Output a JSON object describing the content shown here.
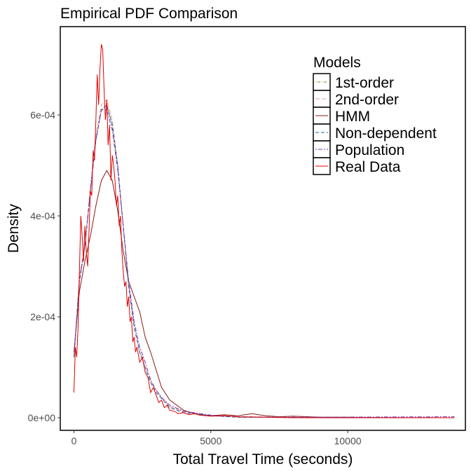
{
  "chart_data": {
    "type": "line",
    "title": "Empirical PDF Comparison",
    "xlabel": "Total Travel Time (seconds)",
    "ylabel": "Density",
    "xlim": [
      -500,
      14300
    ],
    "ylim": [
      -2.5e-05,
      0.000775
    ],
    "x_ticks": [
      0,
      5000,
      10000
    ],
    "x_tick_labels": [
      "0",
      "5000",
      "10000"
    ],
    "y_ticks": [
      0,
      0.0002,
      0.0004,
      0.0006
    ],
    "y_tick_labels": [
      "0e+00",
      "2e-04",
      "4e-04",
      "6e-04"
    ],
    "grid": false,
    "legend": {
      "title": "Models",
      "position": "top-right"
    },
    "series": [
      {
        "name": "1st-order",
        "color": "#6a8f2e",
        "dash": "1 2 4 2",
        "points": [
          [
            0,
            0.00012
          ],
          [
            200,
            0.00028
          ],
          [
            400,
            0.00034
          ],
          [
            600,
            0.00045
          ],
          [
            800,
            0.00055
          ],
          [
            1000,
            0.00061
          ],
          [
            1200,
            0.00062
          ],
          [
            1400,
            0.00058
          ],
          [
            1600,
            0.0005
          ],
          [
            1800,
            0.00038
          ],
          [
            2000,
            0.00026
          ],
          [
            2200,
            0.00018
          ],
          [
            2400,
            0.00013
          ],
          [
            2600,
            0.0001
          ],
          [
            2800,
            7e-05
          ],
          [
            3000,
            5.5e-05
          ],
          [
            3200,
            4e-05
          ],
          [
            3500,
            2.2e-05
          ],
          [
            4000,
            1.2e-05
          ],
          [
            5000,
            4e-06
          ],
          [
            6000,
            1e-06
          ],
          [
            13900,
            0
          ]
        ]
      },
      {
        "name": "2nd-order",
        "color": "#e8a0a0",
        "dash": "6 3",
        "points": [
          [
            0,
            0.00012
          ],
          [
            200,
            0.00028
          ],
          [
            400,
            0.00034
          ],
          [
            600,
            0.00046
          ],
          [
            800,
            0.00056
          ],
          [
            1000,
            0.00062
          ],
          [
            1200,
            0.00063
          ],
          [
            1400,
            0.00059
          ],
          [
            1600,
            0.0005
          ],
          [
            1800,
            0.00038
          ],
          [
            2000,
            0.00026
          ],
          [
            2200,
            0.00018
          ],
          [
            2400,
            0.00013
          ],
          [
            2600,
            0.0001
          ],
          [
            2800,
            7e-05
          ],
          [
            3000,
            5.5e-05
          ],
          [
            3200,
            4e-05
          ],
          [
            3500,
            2.2e-05
          ],
          [
            4000,
            1.2e-05
          ],
          [
            5000,
            4e-06
          ],
          [
            6000,
            1e-06
          ],
          [
            13900,
            0
          ]
        ]
      },
      {
        "name": "HMM",
        "color": "#8b1a1a",
        "dash": "",
        "points": [
          [
            0,
            0.00013
          ],
          [
            200,
            0.00025
          ],
          [
            400,
            0.00031
          ],
          [
            600,
            0.00036
          ],
          [
            800,
            0.00042
          ],
          [
            1000,
            0.00047
          ],
          [
            1200,
            0.00049
          ],
          [
            1400,
            0.00047
          ],
          [
            1600,
            0.00041
          ],
          [
            1800,
            0.00033
          ],
          [
            2000,
            0.00027
          ],
          [
            2200,
            0.00024
          ],
          [
            2400,
            0.00021
          ],
          [
            2600,
            0.00016
          ],
          [
            2800,
            0.00013
          ],
          [
            3000,
            9.5e-05
          ],
          [
            3200,
            6e-05
          ],
          [
            3500,
            3.5e-05
          ],
          [
            4000,
            1.5e-05
          ],
          [
            4500,
            7e-06
          ],
          [
            5000,
            4e-06
          ],
          [
            5500,
            6e-06
          ],
          [
            6000,
            4e-06
          ],
          [
            6500,
            8e-06
          ],
          [
            7000,
            4e-06
          ],
          [
            7500,
            2e-06
          ],
          [
            8000,
            3e-06
          ],
          [
            9000,
            1e-06
          ],
          [
            10000,
            1e-06
          ],
          [
            11000,
            0
          ],
          [
            12000,
            0
          ],
          [
            13900,
            0
          ]
        ]
      },
      {
        "name": "Non-dependent",
        "color": "#1f5fa8",
        "dash": "5 3",
        "points": [
          [
            0,
            0.00012
          ],
          [
            200,
            0.00027
          ],
          [
            400,
            0.00034
          ],
          [
            600,
            0.00045
          ],
          [
            800,
            0.00055
          ],
          [
            1000,
            0.00061
          ],
          [
            1200,
            0.00062
          ],
          [
            1400,
            0.00058
          ],
          [
            1600,
            0.0005
          ],
          [
            1800,
            0.00038
          ],
          [
            2000,
            0.00026
          ],
          [
            2200,
            0.00018
          ],
          [
            2400,
            0.00013
          ],
          [
            2600,
            0.0001
          ],
          [
            2800,
            7e-05
          ],
          [
            3000,
            5e-05
          ],
          [
            3200,
            3.8e-05
          ],
          [
            3500,
            2e-05
          ],
          [
            4000,
            1e-05
          ],
          [
            5000,
            4e-06
          ],
          [
            6000,
            1e-06
          ],
          [
            13900,
            0
          ]
        ]
      },
      {
        "name": "Population",
        "color": "#7b2fa8",
        "dash": "2 2 6 2",
        "points": [
          [
            0,
            0.00012
          ],
          [
            200,
            0.00027
          ],
          [
            400,
            0.00034
          ],
          [
            600,
            0.00045
          ],
          [
            800,
            0.00055
          ],
          [
            1000,
            0.00061
          ],
          [
            1200,
            0.00061
          ],
          [
            1400,
            0.00057
          ],
          [
            1600,
            0.00049
          ],
          [
            1800,
            0.00038
          ],
          [
            2000,
            0.00027
          ],
          [
            2200,
            0.00019
          ],
          [
            2400,
            0.00014
          ],
          [
            2600,
            0.00011
          ],
          [
            2800,
            7.5e-05
          ],
          [
            3000,
            5.5e-05
          ],
          [
            3200,
            4e-05
          ],
          [
            3500,
            2.5e-05
          ],
          [
            4000,
            1.3e-05
          ],
          [
            5000,
            5e-06
          ],
          [
            6000,
            2e-06
          ],
          [
            8000,
            1e-06
          ],
          [
            13900,
            2e-06
          ]
        ]
      },
      {
        "name": "Real Data",
        "color": "#e00000",
        "dash": "",
        "points": [
          [
            0,
            5e-05
          ],
          [
            50,
            0.00014
          ],
          [
            100,
            0.00012
          ],
          [
            150,
            0.00018
          ],
          [
            200,
            0.00029
          ],
          [
            250,
            0.0004
          ],
          [
            300,
            0.00036
          ],
          [
            350,
            0.00031
          ],
          [
            400,
            0.00038
          ],
          [
            450,
            0.00033
          ],
          [
            500,
            0.0003
          ],
          [
            550,
            0.00037
          ],
          [
            600,
            0.00045
          ],
          [
            650,
            0.00044
          ],
          [
            700,
            0.00053
          ],
          [
            750,
            0.00051
          ],
          [
            800,
            0.00059
          ],
          [
            850,
            0.00068
          ],
          [
            900,
            0.00062
          ],
          [
            950,
            0.00069
          ],
          [
            1000,
            0.00074
          ],
          [
            1050,
            0.00073
          ],
          [
            1100,
            0.00065
          ],
          [
            1150,
            0.00059
          ],
          [
            1200,
            0.00063
          ],
          [
            1250,
            0.00054
          ],
          [
            1300,
            0.00058
          ],
          [
            1350,
            0.00047
          ],
          [
            1400,
            0.00052
          ],
          [
            1450,
            0.0005
          ],
          [
            1500,
            0.00047
          ],
          [
            1550,
            0.00042
          ],
          [
            1600,
            0.00044
          ],
          [
            1650,
            0.00038
          ],
          [
            1700,
            0.0004
          ],
          [
            1750,
            0.00033
          ],
          [
            1800,
            0.00029
          ],
          [
            1850,
            0.00026
          ],
          [
            1900,
            0.00027
          ],
          [
            1950,
            0.00022
          ],
          [
            2000,
            0.00024
          ],
          [
            2050,
            0.00019
          ],
          [
            2100,
            0.0002
          ],
          [
            2150,
            0.00015
          ],
          [
            2200,
            0.00016
          ],
          [
            2250,
            0.00013
          ],
          [
            2300,
            0.00014
          ],
          [
            2400,
            0.00011
          ],
          [
            2500,
            0.00012
          ],
          [
            2600,
            9e-05
          ],
          [
            2700,
            8e-05
          ],
          [
            2800,
            5e-05
          ],
          [
            2900,
            6e-05
          ],
          [
            3000,
            4.5e-05
          ],
          [
            3100,
            3e-05
          ],
          [
            3200,
            3.5e-05
          ],
          [
            3300,
            2e-05
          ],
          [
            3400,
            2.5e-05
          ],
          [
            3500,
            1.5e-05
          ],
          [
            3700,
            1.2e-05
          ],
          [
            3800,
            8e-06
          ],
          [
            4000,
            1e-05
          ],
          [
            4200,
            6e-06
          ],
          [
            4400,
            8e-06
          ],
          [
            4600,
            5e-06
          ],
          [
            5000,
            3e-06
          ],
          [
            5500,
            4e-06
          ],
          [
            6000,
            2e-06
          ],
          [
            7000,
            1e-06
          ],
          [
            8000,
            0
          ],
          [
            13900,
            0
          ]
        ]
      }
    ]
  }
}
